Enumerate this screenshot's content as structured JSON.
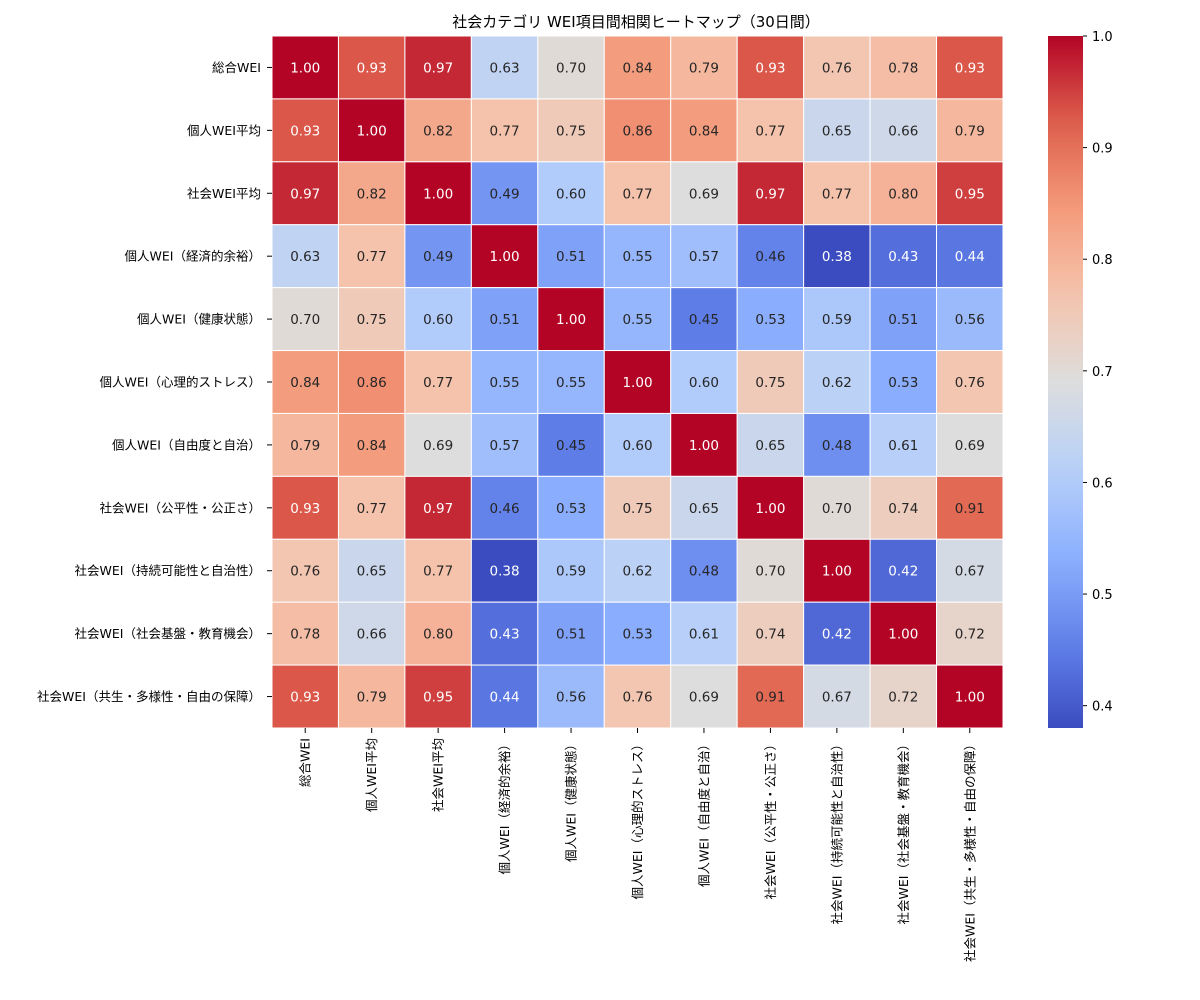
{
  "chart_data": {
    "type": "heatmap",
    "title": "社会カテゴリ WEI項目間相関ヒートマップ（30日間）",
    "row_labels": [
      "総合WEI",
      "個人WEI平均",
      "社会WEI平均",
      "個人WEI（経済的余裕）",
      "個人WEI（健康状態）",
      "個人WEI（心理的ストレス）",
      "個人WEI（自由度と自治）",
      "社会WEI（公平性・公正さ）",
      "社会WEI（持続可能性と自治性）",
      "社会WEI（社会基盤・教育機会）",
      "社会WEI（共生・多様性・自由の保障）"
    ],
    "col_labels": [
      "総合WEI",
      "個人WEI平均",
      "社会WEI平均",
      "個人WEI（経済的余裕）",
      "個人WEI（健康状態）",
      "個人WEI（心理的ストレス）",
      "個人WEI（自由度と自治）",
      "社会WEI（公平性・公正さ）",
      "社会WEI（持続可能性と自治性）",
      "社会WEI（社会基盤・教育機会）",
      "社会WEI（共生・多様性・自由の保障）"
    ],
    "values": [
      [
        1.0,
        0.93,
        0.97,
        0.63,
        0.7,
        0.84,
        0.79,
        0.93,
        0.76,
        0.78,
        0.93
      ],
      [
        0.93,
        1.0,
        0.82,
        0.77,
        0.75,
        0.86,
        0.84,
        0.77,
        0.65,
        0.66,
        0.79
      ],
      [
        0.97,
        0.82,
        1.0,
        0.49,
        0.6,
        0.77,
        0.69,
        0.97,
        0.77,
        0.8,
        0.95
      ],
      [
        0.63,
        0.77,
        0.49,
        1.0,
        0.51,
        0.55,
        0.57,
        0.46,
        0.38,
        0.43,
        0.44
      ],
      [
        0.7,
        0.75,
        0.6,
        0.51,
        1.0,
        0.55,
        0.45,
        0.53,
        0.59,
        0.51,
        0.56
      ],
      [
        0.84,
        0.86,
        0.77,
        0.55,
        0.55,
        1.0,
        0.6,
        0.75,
        0.62,
        0.53,
        0.76
      ],
      [
        0.79,
        0.84,
        0.69,
        0.57,
        0.45,
        0.6,
        1.0,
        0.65,
        0.48,
        0.61,
        0.69
      ],
      [
        0.93,
        0.77,
        0.97,
        0.46,
        0.53,
        0.75,
        0.65,
        1.0,
        0.7,
        0.74,
        0.91
      ],
      [
        0.76,
        0.65,
        0.77,
        0.38,
        0.59,
        0.62,
        0.48,
        0.7,
        1.0,
        0.42,
        0.67
      ],
      [
        0.78,
        0.66,
        0.8,
        0.43,
        0.51,
        0.53,
        0.61,
        0.74,
        0.42,
        1.0,
        0.72
      ],
      [
        0.93,
        0.79,
        0.95,
        0.44,
        0.56,
        0.76,
        0.69,
        0.91,
        0.67,
        0.72,
        1.0
      ]
    ],
    "value_range": [
      0.38,
      1.0
    ],
    "colormap": "coolwarm",
    "colorbar_ticks": [
      "0.4",
      "0.5",
      "0.6",
      "0.7",
      "0.8",
      "0.9",
      "1.0"
    ],
    "annotation_format": "2 decimals",
    "legend_placement": "right",
    "colors": {
      "cell_border": "#ffffff",
      "low": "#3b4cc0",
      "mid": "#dddddd",
      "high": "#b40426"
    }
  }
}
